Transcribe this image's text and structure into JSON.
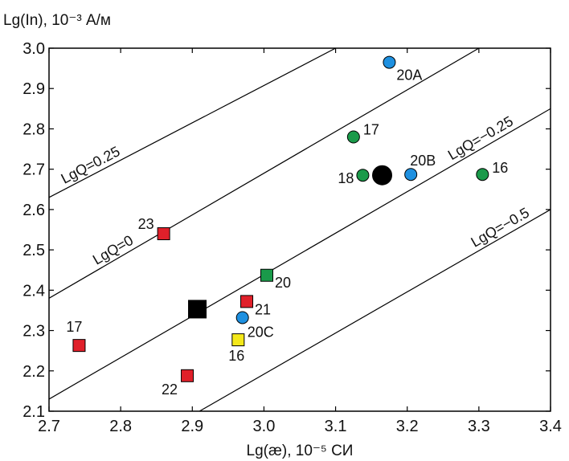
{
  "chart_data": {
    "type": "scatter",
    "xlabel": "Lg(æ), 10⁻⁵ СИ",
    "ylabel": "Lg(In), 10⁻³ А/м",
    "xlim": [
      2.7,
      3.4
    ],
    "ylim": [
      2.1,
      3.0
    ],
    "x_ticks": [
      "2.7",
      "2.8",
      "2.9",
      "3.0",
      "3.1",
      "3.2",
      "3.3",
      "3.4"
    ],
    "y_ticks": [
      "2.1",
      "2.2",
      "2.3",
      "2.4",
      "2.5",
      "2.6",
      "2.7",
      "2.8",
      "2.9",
      "3.0"
    ],
    "grid": false,
    "lines": [
      {
        "label": "LgQ=0.25",
        "points": [
          [
            2.7,
            2.63
          ],
          [
            3.1,
            3.0
          ]
        ]
      },
      {
        "label": "LgQ=0",
        "points": [
          [
            2.7,
            2.38
          ],
          [
            3.3,
            3.0
          ]
        ]
      },
      {
        "label": "LgQ=−0.25",
        "points": [
          [
            2.7,
            2.13
          ],
          [
            3.4,
            2.85
          ]
        ]
      },
      {
        "label": "LgQ=−0.5",
        "points": [
          [
            2.91,
            2.1
          ],
          [
            3.4,
            2.6
          ]
        ]
      }
    ],
    "points": [
      {
        "label": "20A",
        "x": 3.175,
        "y": 2.965,
        "marker": "circle",
        "color": "#1e90e0"
      },
      {
        "label": "17",
        "x": 3.125,
        "y": 2.78,
        "marker": "circle",
        "color": "#1a9a4a"
      },
      {
        "label": "18",
        "x": 3.138,
        "y": 2.685,
        "marker": "circle",
        "color": "#1a9a4a"
      },
      {
        "label": "",
        "x": 3.165,
        "y": 2.685,
        "marker": "circle-large",
        "color": "#000000"
      },
      {
        "label": "20B",
        "x": 3.205,
        "y": 2.687,
        "marker": "circle",
        "color": "#1e90e0"
      },
      {
        "label": "16",
        "x": 3.305,
        "y": 2.687,
        "marker": "circle",
        "color": "#1a9a4a"
      },
      {
        "label": "23",
        "x": 2.86,
        "y": 2.54,
        "marker": "square",
        "color": "#e0202a"
      },
      {
        "label": "20",
        "x": 3.004,
        "y": 2.437,
        "marker": "square",
        "color": "#1a9a4a"
      },
      {
        "label": "",
        "x": 2.907,
        "y": 2.353,
        "marker": "square-large",
        "color": "#000000"
      },
      {
        "label": "21",
        "x": 2.976,
        "y": 2.372,
        "marker": "square",
        "color": "#e0202a"
      },
      {
        "label": "20C",
        "x": 2.97,
        "y": 2.332,
        "marker": "circle",
        "color": "#1e90e0"
      },
      {
        "label": "16",
        "x": 2.964,
        "y": 2.277,
        "marker": "square",
        "color": "#f4e81a"
      },
      {
        "label": "17",
        "x": 2.742,
        "y": 2.263,
        "marker": "square",
        "color": "#e0202a"
      },
      {
        "label": "22",
        "x": 2.893,
        "y": 2.188,
        "marker": "square",
        "color": "#e0202a"
      }
    ]
  }
}
